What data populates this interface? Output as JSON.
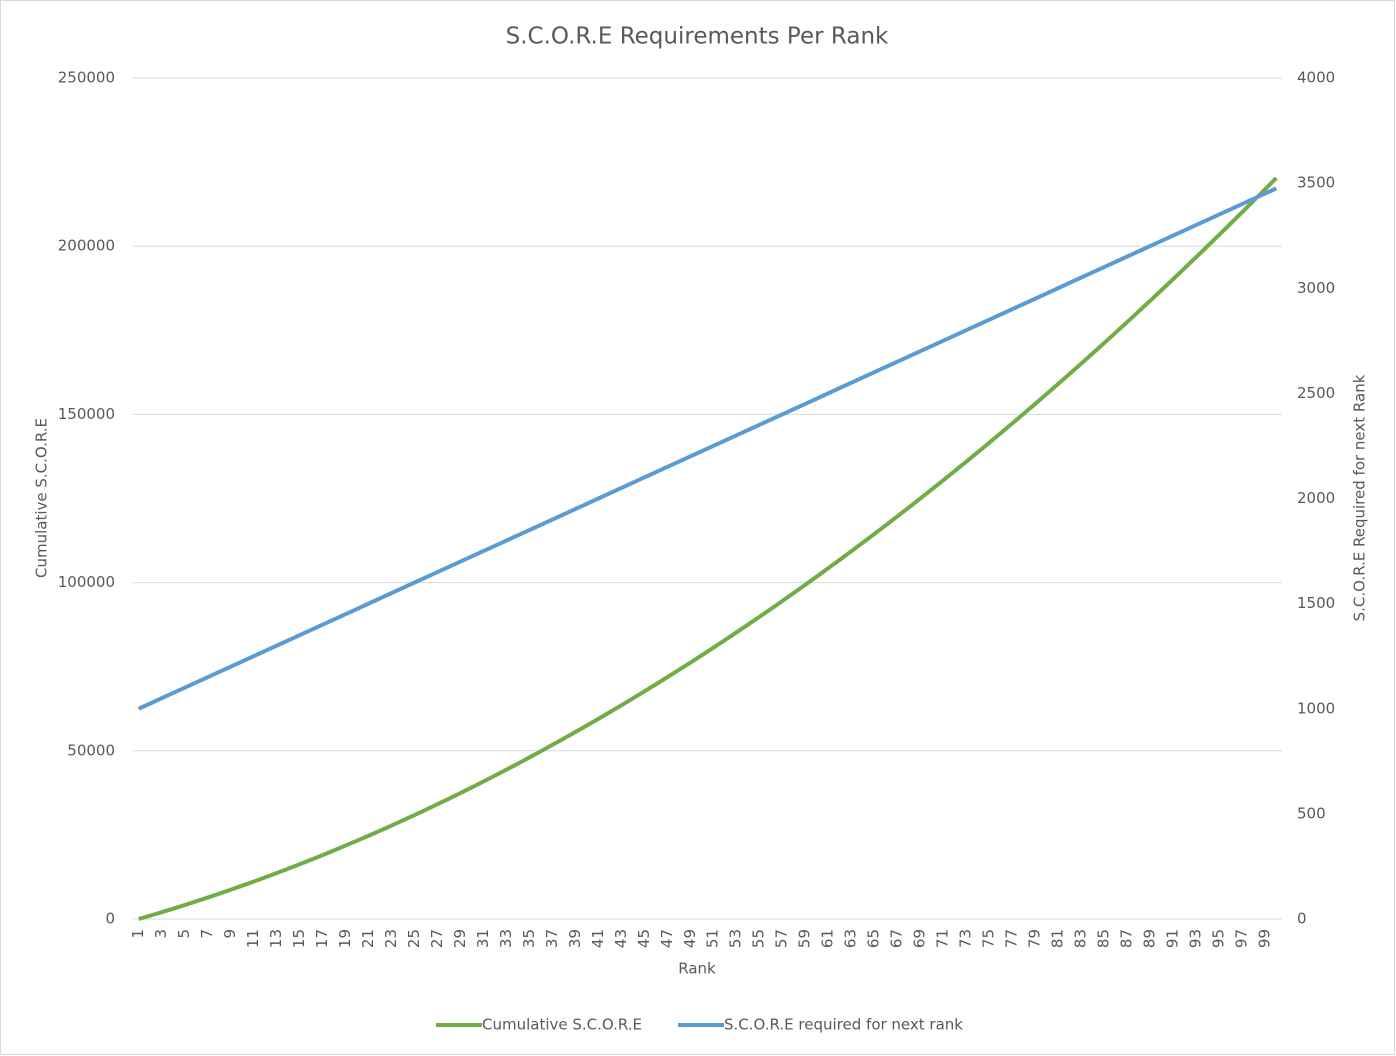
{
  "chart_data": {
    "type": "line",
    "title": "S.C.O.R.E Requirements Per Rank",
    "xlabel": "Rank",
    "ylabel": "Cumulative S.C.O.R.E",
    "y2label": "S.C.O.R.E Required for next Rank",
    "categories": [
      "1",
      null,
      "3",
      null,
      "5",
      null,
      "7",
      null,
      "9",
      null,
      "11",
      null,
      "13",
      null,
      "15",
      null,
      "17",
      null,
      "19",
      null,
      "21",
      null,
      "23",
      null,
      "25",
      null,
      "27",
      null,
      "29",
      null,
      "31",
      null,
      "33",
      null,
      "35",
      null,
      "37",
      null,
      "39",
      null,
      "41",
      null,
      "43",
      null,
      "45",
      null,
      "47",
      null,
      "49",
      null,
      "51",
      null,
      "53",
      null,
      "55",
      null,
      "57",
      null,
      "59",
      null,
      "61",
      null,
      "63",
      null,
      "65",
      null,
      "67",
      null,
      "69",
      null,
      "71",
      null,
      "73",
      null,
      "75",
      null,
      "77",
      null,
      "79",
      null,
      "81",
      null,
      "83",
      null,
      "85",
      null,
      "87",
      null,
      "89",
      null,
      "91",
      null,
      "93",
      null,
      "95",
      null,
      "97",
      null,
      "99",
      null
    ],
    "series": [
      {
        "name": "Cumulative S.C.O.R.E",
        "color": "#70ad47",
        "axis": "y",
        "values": [
          0,
          1000,
          2025,
          3075,
          4150,
          5250,
          6375,
          7525,
          8700,
          9900,
          11125,
          12375,
          13650,
          14950,
          16275,
          17625,
          19000,
          20400,
          21825,
          23275,
          24750,
          26250,
          27775,
          29325,
          30900,
          32500,
          34125,
          35775,
          37450,
          39150,
          40875,
          42625,
          44400,
          46200,
          48025,
          49875,
          51750,
          53650,
          55575,
          57525,
          59500,
          61500,
          63525,
          65575,
          67650,
          69750,
          71875,
          74025,
          76200,
          78400,
          80625,
          82875,
          85150,
          87450,
          89775,
          92125,
          94500,
          96900,
          99325,
          101775,
          104250,
          106750,
          109275,
          111825,
          114400,
          117000,
          119625,
          122275,
          124950,
          127650,
          130375,
          133125,
          135900,
          138700,
          141525,
          144375,
          147250,
          150150,
          153075,
          156025,
          159000,
          162000,
          165025,
          168075,
          171150,
          174250,
          177375,
          180525,
          183700,
          186900,
          190125,
          193375,
          196650,
          199950,
          203275,
          206625,
          210000,
          213400,
          216825,
          220275
        ]
      },
      {
        "name": "S.C.O.R.E required for next rank",
        "color": "#5b9bd5",
        "axis": "y2",
        "values": [
          1000,
          1025,
          1050,
          1075,
          1100,
          1125,
          1150,
          1175,
          1200,
          1225,
          1250,
          1275,
          1300,
          1325,
          1350,
          1375,
          1400,
          1425,
          1450,
          1475,
          1500,
          1525,
          1550,
          1575,
          1600,
          1625,
          1650,
          1675,
          1700,
          1725,
          1750,
          1775,
          1800,
          1825,
          1850,
          1875,
          1900,
          1925,
          1950,
          1975,
          2000,
          2025,
          2050,
          2075,
          2100,
          2125,
          2150,
          2175,
          2200,
          2225,
          2250,
          2275,
          2300,
          2325,
          2350,
          2375,
          2400,
          2425,
          2450,
          2475,
          2500,
          2525,
          2550,
          2575,
          2600,
          2625,
          2650,
          2675,
          2700,
          2725,
          2750,
          2775,
          2800,
          2825,
          2850,
          2875,
          2900,
          2925,
          2950,
          2975,
          3000,
          3025,
          3050,
          3075,
          3100,
          3125,
          3150,
          3175,
          3200,
          3225,
          3250,
          3275,
          3300,
          3325,
          3350,
          3375,
          3400,
          3425,
          3450,
          3475
        ]
      }
    ],
    "ylim": [
      0,
      250000
    ],
    "yticks": [
      0,
      50000,
      100000,
      150000,
      200000,
      250000
    ],
    "y2lim": [
      0,
      4000
    ],
    "y2ticks": [
      0,
      500,
      1000,
      1500,
      2000,
      2500,
      3000,
      3500,
      4000
    ],
    "grid": true,
    "legend": "bottom"
  }
}
